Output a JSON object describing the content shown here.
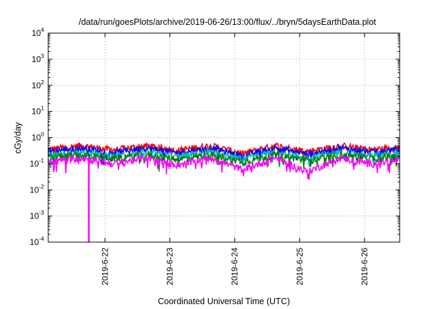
{
  "chart_data": {
    "type": "line",
    "title": "/data/run/goesPlots/archive/2019-06-26/13:00/flux/../bryn/5daysEarthData.plot",
    "xlabel": "Coordinated Universal Time (UTC)",
    "ylabel": "cGy/day",
    "yscale": "log",
    "ylim": [
      0.0001,
      10000
    ],
    "y_ticks": [
      {
        "base": "10",
        "exp": "-4",
        "value": 0.0001
      },
      {
        "base": "10",
        "exp": "-3",
        "value": 0.001
      },
      {
        "base": "10",
        "exp": "-2",
        "value": 0.01
      },
      {
        "base": "10",
        "exp": "-1",
        "value": 0.1
      },
      {
        "base": "10",
        "exp": "0",
        "value": 1
      },
      {
        "base": "10",
        "exp": "1",
        "value": 10
      },
      {
        "base": "10",
        "exp": "2",
        "value": 100
      },
      {
        "base": "10",
        "exp": "3",
        "value": 1000
      },
      {
        "base": "10",
        "exp": "4",
        "value": 10000
      }
    ],
    "xlim": [
      "2019-06-21T03:00",
      "2019-06-26T13:00"
    ],
    "x_ticks": [
      {
        "label": "2019-6-22",
        "value": "2019-06-22T00:00"
      },
      {
        "label": "2019-6-23",
        "value": "2019-06-23T00:00"
      },
      {
        "label": "2019-6-24",
        "value": "2019-06-24T00:00"
      },
      {
        "label": "2019-6-25",
        "value": "2019-06-25T00:00"
      },
      {
        "label": "2019-6-26",
        "value": "2019-06-26T00:00"
      }
    ],
    "grid": true,
    "series": [
      {
        "color": "#ff0000",
        "values": [
          {
            "x": "2019-06-21T03:00",
            "y": 0.36
          },
          {
            "x": "2019-06-21T15:00",
            "y": 0.5
          },
          {
            "x": "2019-06-22T03:00",
            "y": 0.34
          },
          {
            "x": "2019-06-22T15:00",
            "y": 0.5
          },
          {
            "x": "2019-06-23T03:00",
            "y": 0.33
          },
          {
            "x": "2019-06-23T15:00",
            "y": 0.5
          },
          {
            "x": "2019-06-24T03:00",
            "y": 0.25
          },
          {
            "x": "2019-06-24T15:00",
            "y": 0.5
          },
          {
            "x": "2019-06-25T03:00",
            "y": 0.3
          },
          {
            "x": "2019-06-25T15:00",
            "y": 0.5
          },
          {
            "x": "2019-06-26T03:00",
            "y": 0.35
          },
          {
            "x": "2019-06-26T13:00",
            "y": 0.45
          }
        ]
      },
      {
        "color": "#0000ff",
        "values": [
          {
            "x": "2019-06-21T03:00",
            "y": 0.3
          },
          {
            "x": "2019-06-21T15:00",
            "y": 0.4
          },
          {
            "x": "2019-06-22T03:00",
            "y": 0.27
          },
          {
            "x": "2019-06-22T15:00",
            "y": 0.4
          },
          {
            "x": "2019-06-23T03:00",
            "y": 0.26
          },
          {
            "x": "2019-06-23T15:00",
            "y": 0.4
          },
          {
            "x": "2019-06-24T03:00",
            "y": 0.2
          },
          {
            "x": "2019-06-24T15:00",
            "y": 0.4
          },
          {
            "x": "2019-06-25T03:00",
            "y": 0.24
          },
          {
            "x": "2019-06-25T15:00",
            "y": 0.4
          },
          {
            "x": "2019-06-26T03:00",
            "y": 0.28
          },
          {
            "x": "2019-06-26T13:00",
            "y": 0.36
          }
        ]
      },
      {
        "color": "#00bfbf",
        "values": [
          {
            "x": "2019-06-21T03:00",
            "y": 0.22
          },
          {
            "x": "2019-06-21T15:00",
            "y": 0.28
          },
          {
            "x": "2019-06-22T03:00",
            "y": 0.2
          },
          {
            "x": "2019-06-22T15:00",
            "y": 0.28
          },
          {
            "x": "2019-06-23T03:00",
            "y": 0.19
          },
          {
            "x": "2019-06-23T15:00",
            "y": 0.28
          },
          {
            "x": "2019-06-24T03:00",
            "y": 0.15
          },
          {
            "x": "2019-06-24T15:00",
            "y": 0.28
          },
          {
            "x": "2019-06-25T03:00",
            "y": 0.17
          },
          {
            "x": "2019-06-25T15:00",
            "y": 0.28
          },
          {
            "x": "2019-06-26T03:00",
            "y": 0.2
          },
          {
            "x": "2019-06-26T13:00",
            "y": 0.25
          }
        ]
      },
      {
        "color": "#008000",
        "values": [
          {
            "x": "2019-06-21T03:00",
            "y": 0.18
          },
          {
            "x": "2019-06-21T15:00",
            "y": 0.22
          },
          {
            "x": "2019-06-22T03:00",
            "y": 0.16
          },
          {
            "x": "2019-06-22T15:00",
            "y": 0.22
          },
          {
            "x": "2019-06-23T03:00",
            "y": 0.15
          },
          {
            "x": "2019-06-23T15:00",
            "y": 0.22
          },
          {
            "x": "2019-06-24T03:00",
            "y": 0.12
          },
          {
            "x": "2019-06-24T15:00",
            "y": 0.22
          },
          {
            "x": "2019-06-25T03:00",
            "y": 0.14
          },
          {
            "x": "2019-06-25T15:00",
            "y": 0.22
          },
          {
            "x": "2019-06-26T03:00",
            "y": 0.16
          },
          {
            "x": "2019-06-26T13:00",
            "y": 0.2
          }
        ]
      },
      {
        "color": "#ff00ff",
        "values": [
          {
            "x": "2019-06-21T03:00",
            "y": 0.12
          },
          {
            "x": "2019-06-21T15:00",
            "y": 0.17
          },
          {
            "x": "2019-06-21T18:00",
            "y": 0.0001
          },
          {
            "x": "2019-06-22T03:00",
            "y": 0.1
          },
          {
            "x": "2019-06-22T15:00",
            "y": 0.17
          },
          {
            "x": "2019-06-23T03:00",
            "y": 0.09
          },
          {
            "x": "2019-06-23T15:00",
            "y": 0.17
          },
          {
            "x": "2019-06-24T03:00",
            "y": 0.06
          },
          {
            "x": "2019-06-24T15:00",
            "y": 0.17
          },
          {
            "x": "2019-06-25T03:00",
            "y": 0.05
          },
          {
            "x": "2019-06-25T15:00",
            "y": 0.17
          },
          {
            "x": "2019-06-26T03:00",
            "y": 0.1
          },
          {
            "x": "2019-06-26T13:00",
            "y": 0.14
          }
        ]
      }
    ]
  }
}
